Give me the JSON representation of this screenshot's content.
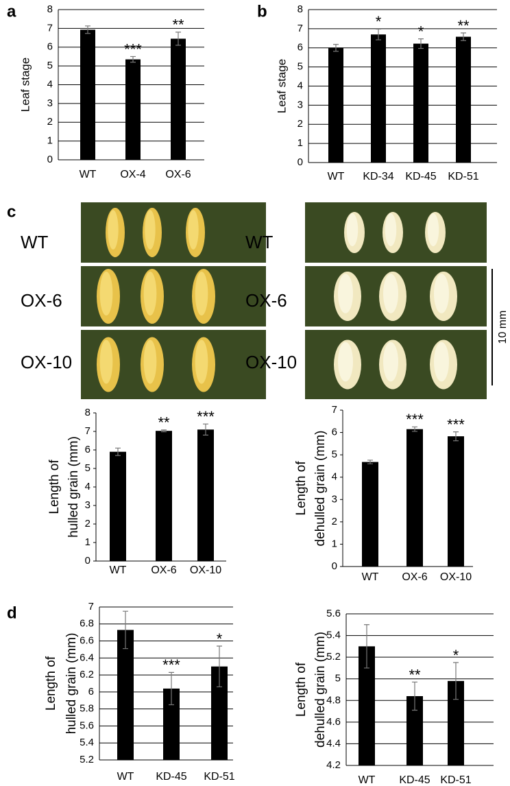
{
  "panels": [
    "a",
    "b",
    "c",
    "d"
  ],
  "photos": {
    "rows": [
      "WT",
      "OX-6",
      "OX-10"
    ],
    "scale_bar": "10 mm"
  },
  "chart_data": [
    {
      "type": "bar",
      "ylabel": "Leaf stage",
      "categories": [
        "WT",
        "OX-4",
        "OX-6"
      ],
      "values": [
        6.93,
        5.35,
        6.45
      ],
      "errors": [
        0.2,
        0.15,
        0.35
      ],
      "annotations": [
        null,
        "***",
        "**"
      ],
      "ylim": [
        0,
        8
      ],
      "yticks": [
        0,
        1,
        2,
        3,
        4,
        5,
        6,
        7,
        8
      ],
      "grid": true,
      "color": "#000000"
    },
    {
      "type": "bar",
      "ylabel": "Leaf stage",
      "categories": [
        "WT",
        "KD-34",
        "KD-45",
        "KD-51"
      ],
      "values": [
        6.0,
        6.7,
        6.22,
        6.58
      ],
      "errors": [
        0.18,
        0.28,
        0.25,
        0.2
      ],
      "annotations": [
        null,
        "*",
        "*",
        "**"
      ],
      "ylim": [
        0,
        8
      ],
      "yticks": [
        0,
        1,
        2,
        3,
        4,
        5,
        6,
        7,
        8
      ],
      "grid": true,
      "color": "#000000"
    },
    {
      "type": "bar",
      "ylabel": [
        "Length of",
        "hulled grain (mm)"
      ],
      "categories": [
        "WT",
        "OX-6",
        "OX-10"
      ],
      "values": [
        5.9,
        7.03,
        7.1
      ],
      "errors": [
        0.2,
        0.05,
        0.3
      ],
      "annotations": [
        null,
        "**",
        "***"
      ],
      "ylim": [
        0,
        8
      ],
      "yticks": [
        0,
        1,
        2,
        3,
        4,
        5,
        6,
        7,
        8
      ],
      "grid": false,
      "color": "#000000"
    },
    {
      "type": "bar",
      "ylabel": [
        "Length of",
        "dehulled grain (mm)"
      ],
      "categories": [
        "WT",
        "OX-6",
        "OX-10"
      ],
      "values": [
        4.68,
        6.15,
        5.83
      ],
      "errors": [
        0.08,
        0.1,
        0.2
      ],
      "annotations": [
        null,
        "***",
        "***"
      ],
      "ylim": [
        0,
        7
      ],
      "yticks": [
        0,
        1,
        2,
        3,
        4,
        5,
        6,
        7
      ],
      "grid": false,
      "color": "#000000"
    },
    {
      "type": "bar",
      "ylabel": [
        "Length of",
        "hulled grain (mm)"
      ],
      "categories": [
        "WT",
        "KD-45",
        "KD-51"
      ],
      "values": [
        6.73,
        6.04,
        6.3
      ],
      "errors": [
        0.22,
        0.19,
        0.24
      ],
      "annotations": [
        null,
        "***",
        "*"
      ],
      "ylim": [
        5.2,
        7
      ],
      "yticks": [
        5.2,
        5.4,
        5.6,
        5.8,
        6,
        6.2,
        6.4,
        6.6,
        6.8,
        7
      ],
      "grid": true,
      "color": "#000000"
    },
    {
      "type": "bar",
      "ylabel": [
        "Length of",
        "dehulled grain (mm)"
      ],
      "categories": [
        "WT",
        "KD-45",
        "KD-51"
      ],
      "values": [
        5.3,
        4.84,
        4.98
      ],
      "errors": [
        0.2,
        0.13,
        0.17
      ],
      "annotations": [
        null,
        "**",
        "*"
      ],
      "ylim": [
        4.2,
        5.6
      ],
      "yticks": [
        4.2,
        4.4,
        4.6,
        4.8,
        5,
        5.2,
        5.4,
        5.6
      ],
      "grid": true,
      "color": "#000000"
    }
  ]
}
